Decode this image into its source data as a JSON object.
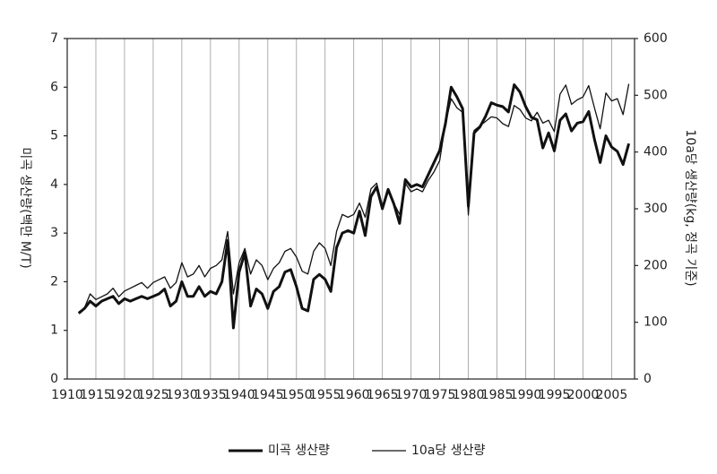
{
  "chart_data": {
    "type": "line",
    "y_label": "미곡 생산량(백만 M/T)",
    "y2_label": "10a당 생산량(kg, 정곡 기준)",
    "x": [
      1912,
      1913,
      1914,
      1915,
      1916,
      1917,
      1918,
      1919,
      1920,
      1921,
      1922,
      1923,
      1924,
      1925,
      1926,
      1927,
      1928,
      1929,
      1930,
      1931,
      1932,
      1933,
      1934,
      1935,
      1936,
      1937,
      1938,
      1939,
      1940,
      1941,
      1942,
      1943,
      1944,
      1945,
      1946,
      1947,
      1948,
      1949,
      1950,
      1951,
      1952,
      1953,
      1954,
      1955,
      1956,
      1957,
      1958,
      1959,
      1960,
      1961,
      1962,
      1963,
      1964,
      1965,
      1966,
      1967,
      1968,
      1969,
      1970,
      1971,
      1972,
      1973,
      1974,
      1975,
      1976,
      1977,
      1978,
      1979,
      1980,
      1981,
      1982,
      1983,
      1984,
      1985,
      1986,
      1987,
      1988,
      1989,
      1990,
      1991,
      1992,
      1993,
      1994,
      1995,
      1996,
      1997,
      1998,
      1999,
      2000,
      2001,
      2002,
      2003,
      2004,
      2005,
      2006,
      2007,
      2008
    ],
    "series": [
      {
        "name": "미곡 생산량",
        "color": "#111111",
        "width": 3,
        "axis": "y",
        "values": [
          1.35,
          1.45,
          1.6,
          1.5,
          1.6,
          1.65,
          1.7,
          1.55,
          1.65,
          1.6,
          1.65,
          1.7,
          1.65,
          1.7,
          1.75,
          1.85,
          1.5,
          1.6,
          2.0,
          1.7,
          1.7,
          1.9,
          1.7,
          1.8,
          1.75,
          2.0,
          2.85,
          1.05,
          2.2,
          2.6,
          1.5,
          1.85,
          1.75,
          1.45,
          1.8,
          1.9,
          2.2,
          2.25,
          1.9,
          1.45,
          1.4,
          2.05,
          2.15,
          2.05,
          1.8,
          2.7,
          3.0,
          3.05,
          3.0,
          3.45,
          2.95,
          3.75,
          3.95,
          3.5,
          3.9,
          3.6,
          3.2,
          4.1,
          3.95,
          4.0,
          3.95,
          4.2,
          4.45,
          4.7,
          5.25,
          6.0,
          5.8,
          5.56,
          3.55,
          5.06,
          5.18,
          5.4,
          5.68,
          5.63,
          5.6,
          5.49,
          6.05,
          5.9,
          5.6,
          5.38,
          5.33,
          4.75,
          5.06,
          4.69,
          5.32,
          5.45,
          5.1,
          5.26,
          5.29,
          5.5,
          4.93,
          4.45,
          5.0,
          4.77,
          4.68,
          4.41,
          4.84
        ]
      },
      {
        "name": "10a당 생산량",
        "color": "#111111",
        "width": 1.3,
        "axis": "y2",
        "values": [
          118,
          125,
          150,
          140,
          145,
          150,
          160,
          145,
          155,
          160,
          165,
          170,
          160,
          170,
          175,
          180,
          160,
          170,
          205,
          180,
          185,
          200,
          180,
          195,
          200,
          210,
          260,
          150,
          205,
          230,
          185,
          210,
          200,
          175,
          195,
          205,
          225,
          230,
          215,
          190,
          185,
          225,
          240,
          230,
          200,
          260,
          290,
          285,
          290,
          310,
          285,
          335,
          345,
          305,
          335,
          310,
          290,
          345,
          330,
          335,
          330,
          350,
          365,
          385,
          450,
          494,
          478,
          470,
          289,
          438,
          446,
          454,
          462,
          460,
          450,
          445,
          482,
          475,
          460,
          455,
          470,
          451,
          456,
          436,
          502,
          518,
          484,
          492,
          497,
          517,
          478,
          441,
          504,
          490,
          494,
          466,
          520
        ]
      }
    ],
    "xlim": [
      1910,
      2009
    ],
    "xticks": [
      1910,
      1915,
      1920,
      1925,
      1930,
      1935,
      1940,
      1945,
      1950,
      1955,
      1960,
      1965,
      1970,
      1975,
      1980,
      1985,
      1990,
      1995,
      2000,
      2005
    ],
    "ylim": [
      0,
      7
    ],
    "yticks": [
      0,
      1,
      2,
      3,
      4,
      5,
      6,
      7
    ],
    "y2lim": [
      0,
      600
    ],
    "y2ticks": [
      0,
      100,
      200,
      300,
      400,
      500,
      600
    ],
    "grid": true,
    "legend": "bottom"
  }
}
